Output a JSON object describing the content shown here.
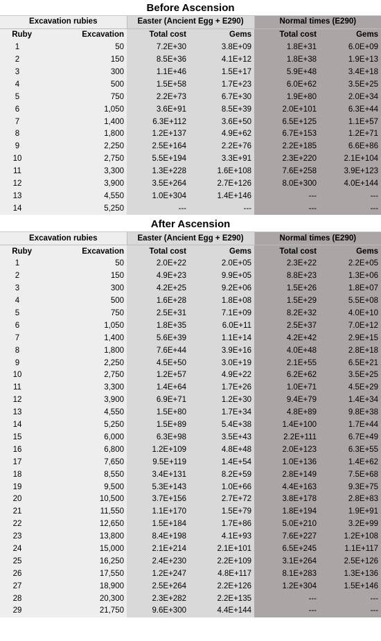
{
  "header_labels": {
    "excavation_rubies": "Excavation rubies",
    "easter": "Easter (Ancient Egg + E290)",
    "normal": "Normal times (E290)",
    "ruby": "Ruby",
    "excavation": "Excavation",
    "total_cost": "Total cost",
    "gems": "Gems"
  },
  "before": {
    "title": "Before Ascension",
    "rows": [
      [
        "1",
        "50",
        "7.2E+30",
        "3.8E+09",
        "1.8E+31",
        "6.0E+09"
      ],
      [
        "2",
        "150",
        "8.5E+36",
        "4.1E+12",
        "1.8E+38",
        "1.9E+13"
      ],
      [
        "3",
        "300",
        "1.1E+46",
        "1.5E+17",
        "5.9E+48",
        "3.4E+18"
      ],
      [
        "4",
        "500",
        "1.5E+58",
        "1.7E+23",
        "6.0E+62",
        "3.5E+25"
      ],
      [
        "5",
        "750",
        "2.2E+73",
        "6.7E+30",
        "1.9E+80",
        "2.0E+34"
      ],
      [
        "6",
        "1,050",
        "3.6E+91",
        "8.5E+39",
        "2.0E+101",
        "6.3E+44"
      ],
      [
        "7",
        "1,400",
        "6.3E+112",
        "3.6E+50",
        "6.5E+125",
        "1.1E+57"
      ],
      [
        "8",
        "1,800",
        "1.2E+137",
        "4.9E+62",
        "6.7E+153",
        "1.2E+71"
      ],
      [
        "9",
        "2,250",
        "2.5E+164",
        "2.2E+76",
        "2.2E+185",
        "6.6E+86"
      ],
      [
        "10",
        "2,750",
        "5.5E+194",
        "3.3E+91",
        "2.3E+220",
        "2.1E+104"
      ],
      [
        "11",
        "3,300",
        "1.3E+228",
        "1.6E+108",
        "7.6E+258",
        "3.9E+123"
      ],
      [
        "12",
        "3,900",
        "3.5E+264",
        "2.7E+126",
        "8.0E+300",
        "4.0E+144"
      ],
      [
        "13",
        "4,550",
        "1.0E+304",
        "1.4E+146",
        "---",
        "---"
      ],
      [
        "14",
        "5,250",
        "---",
        "---",
        "---",
        "---"
      ]
    ]
  },
  "after": {
    "title": "After Ascension",
    "rows": [
      [
        "1",
        "50",
        "2.0E+22",
        "2.0E+05",
        "2.3E+22",
        "2.2E+05"
      ],
      [
        "2",
        "150",
        "4.9E+23",
        "9.9E+05",
        "8.8E+23",
        "1.3E+06"
      ],
      [
        "3",
        "300",
        "4.2E+25",
        "9.2E+06",
        "1.5E+26",
        "1.8E+07"
      ],
      [
        "4",
        "500",
        "1.6E+28",
        "1.8E+08",
        "1.5E+29",
        "5.5E+08"
      ],
      [
        "5",
        "750",
        "2.5E+31",
        "7.1E+09",
        "8.2E+32",
        "4.0E+10"
      ],
      [
        "6",
        "1,050",
        "1.8E+35",
        "6.0E+11",
        "2.5E+37",
        "7.0E+12"
      ],
      [
        "7",
        "1,400",
        "5.6E+39",
        "1.1E+14",
        "4.2E+42",
        "2.9E+15"
      ],
      [
        "8",
        "1,800",
        "7.6E+44",
        "3.9E+16",
        "4.0E+48",
        "2.8E+18"
      ],
      [
        "9",
        "2,250",
        "4.5E+50",
        "3.0E+19",
        "2.1E+55",
        "6.5E+21"
      ],
      [
        "10",
        "2,750",
        "1.2E+57",
        "4.9E+22",
        "6.2E+62",
        "3.5E+25"
      ],
      [
        "11",
        "3,300",
        "1.4E+64",
        "1.7E+26",
        "1.0E+71",
        "4.5E+29"
      ],
      [
        "12",
        "3,900",
        "6.9E+71",
        "1.2E+30",
        "9.4E+79",
        "1.4E+34"
      ],
      [
        "13",
        "4,550",
        "1.5E+80",
        "1.7E+34",
        "4.8E+89",
        "9.8E+38"
      ],
      [
        "14",
        "5,250",
        "1.5E+89",
        "5.4E+38",
        "1.4E+100",
        "1.7E+44"
      ],
      [
        "15",
        "6,000",
        "6.3E+98",
        "3.5E+43",
        "2.2E+111",
        "6.7E+49"
      ],
      [
        "16",
        "6,800",
        "1.2E+109",
        "4.8E+48",
        "2.0E+123",
        "6.3E+55"
      ],
      [
        "17",
        "7,650",
        "9.5E+119",
        "1.4E+54",
        "1.0E+136",
        "1.4E+62"
      ],
      [
        "18",
        "8,550",
        "3.4E+131",
        "8.2E+59",
        "2.8E+149",
        "7.5E+68"
      ],
      [
        "19",
        "9,500",
        "5.3E+143",
        "1.0E+66",
        "4.4E+163",
        "9.3E+75"
      ],
      [
        "20",
        "10,500",
        "3.7E+156",
        "2.7E+72",
        "3.8E+178",
        "2.8E+83"
      ],
      [
        "21",
        "11,550",
        "1.1E+170",
        "1.5E+79",
        "1.8E+194",
        "1.9E+91"
      ],
      [
        "22",
        "12,650",
        "1.5E+184",
        "1.7E+86",
        "5.0E+210",
        "3.2E+99"
      ],
      [
        "23",
        "13,800",
        "8.4E+198",
        "4.1E+93",
        "7.6E+227",
        "1.2E+108"
      ],
      [
        "24",
        "15,000",
        "2.1E+214",
        "2.1E+101",
        "6.5E+245",
        "1.1E+117"
      ],
      [
        "25",
        "16,250",
        "2.4E+230",
        "2.2E+109",
        "3.1E+264",
        "2.5E+126"
      ],
      [
        "26",
        "17,550",
        "1.2E+247",
        "4.8E+117",
        "8.1E+283",
        "1.3E+136"
      ],
      [
        "27",
        "18,900",
        "2.5E+264",
        "2.2E+126",
        "1.2E+304",
        "1.5E+146"
      ],
      [
        "28",
        "20,300",
        "2.3E+282",
        "2.2E+135",
        "---",
        "---"
      ],
      [
        "29",
        "21,750",
        "9.6E+300",
        "4.4E+144",
        "---",
        "---"
      ]
    ]
  }
}
